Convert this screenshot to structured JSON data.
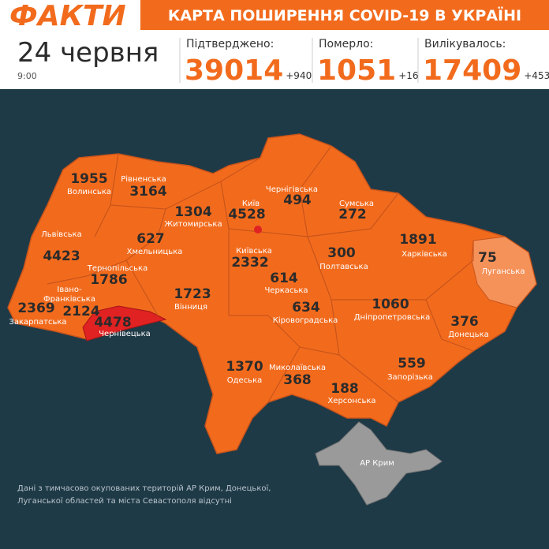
{
  "header": {
    "logo": "ФАКТИ",
    "title": "КАРТА ПОШИРЕННЯ COVID-19 В УКРАЇНІ",
    "date": "24 червня",
    "time": "9:00",
    "stats": [
      {
        "label": "Підтверджено:",
        "value": "39014",
        "delta": "+940"
      },
      {
        "label": "Померло:",
        "value": "1051",
        "delta": "+16"
      },
      {
        "label": "Вилікувалось:",
        "value": "17409",
        "delta": "+453"
      }
    ]
  },
  "regions": [
    {
      "name": "Волинська",
      "count": "1955"
    },
    {
      "name": "Рівненська",
      "count": "3164"
    },
    {
      "name": "Житомирська",
      "count": "1304"
    },
    {
      "name": "Київ",
      "count": "4528"
    },
    {
      "name": "Чернігівська",
      "count": "494"
    },
    {
      "name": "Сумська",
      "count": "272"
    },
    {
      "name": "Львівська",
      "count": "4423"
    },
    {
      "name": "Хмельницька",
      "count": "627"
    },
    {
      "name": "Київська",
      "count": "2332"
    },
    {
      "name": "Полтавська",
      "count": "300"
    },
    {
      "name": "Харківська",
      "count": "1891"
    },
    {
      "name": "Луганська",
      "count": "75"
    },
    {
      "name": "Тернопільська",
      "count": "1786"
    },
    {
      "name": "Черкаська",
      "count": "614"
    },
    {
      "name": [
        "Івано-",
        "Франківська"
      ],
      "count": "2124"
    },
    {
      "name": "Закарпатська",
      "count": "2369"
    },
    {
      "name": "Чернівецька",
      "count": "4478"
    },
    {
      "name": "Вінниця",
      "count": "1723"
    },
    {
      "name": "Кіровоградська",
      "count": "634"
    },
    {
      "name": "Дніпропетровська",
      "count": "1060"
    },
    {
      "name": "Донецька",
      "count": "376"
    },
    {
      "name": "Одеська",
      "count": "1370"
    },
    {
      "name": "Миколаївська",
      "count": "368"
    },
    {
      "name": "Запорізька",
      "count": "559"
    },
    {
      "name": "Херсонська",
      "count": "188"
    },
    {
      "name": "АР Крим"
    }
  ],
  "note": [
    "Дані з тимчасово окупованих територій АР Крим, Донецької,",
    "Луганської областей та міста Севастополя відсутні"
  ]
}
